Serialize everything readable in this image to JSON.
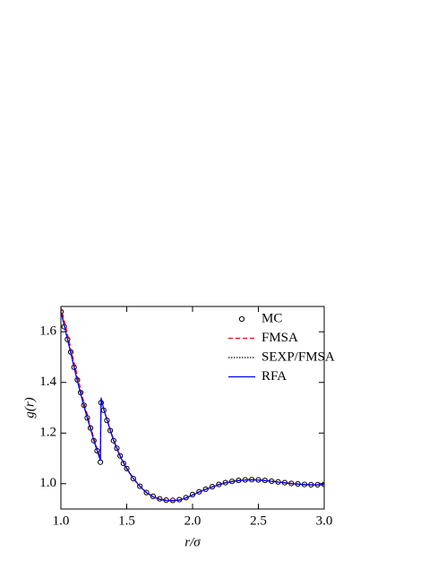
{
  "chart_data": {
    "type": "line",
    "xlabel": "r/σ",
    "ylabel": "g(r)",
    "x": [
      1.0,
      1.025,
      1.05,
      1.075,
      1.1,
      1.125,
      1.15,
      1.175,
      1.2,
      1.225,
      1.25,
      1.275,
      1.3,
      1.305,
      1.325,
      1.35,
      1.375,
      1.4,
      1.425,
      1.45,
      1.475,
      1.5,
      1.55,
      1.6,
      1.65,
      1.7,
      1.75,
      1.8,
      1.85,
      1.9,
      1.95,
      2.0,
      2.05,
      2.1,
      2.15,
      2.2,
      2.25,
      2.3,
      2.35,
      2.4,
      2.45,
      2.5,
      2.55,
      2.6,
      2.65,
      2.7,
      2.75,
      2.8,
      2.85,
      2.9,
      2.95,
      3.0
    ],
    "series": [
      {
        "name": "MC",
        "color": "#000000",
        "marker": "circle",
        "values": [
          1.68,
          1.62,
          1.57,
          1.52,
          1.46,
          1.41,
          1.36,
          1.31,
          1.26,
          1.22,
          1.17,
          1.13,
          1.085,
          1.32,
          1.29,
          1.25,
          1.21,
          1.17,
          1.14,
          1.11,
          1.08,
          1.06,
          1.02,
          0.99,
          0.965,
          0.95,
          0.94,
          0.935,
          0.934,
          0.937,
          0.945,
          0.957,
          0.968,
          0.978,
          0.988,
          0.997,
          1.004,
          1.009,
          1.013,
          1.015,
          1.016,
          1.015,
          1.013,
          1.01,
          1.007,
          1.004,
          1.001,
          0.999,
          0.997,
          0.996,
          0.996,
          0.997
        ]
      },
      {
        "name": "FMSA",
        "color": "#ff0000",
        "style": "dashed",
        "values": [
          1.7,
          1.645,
          1.59,
          1.535,
          1.48,
          1.425,
          1.375,
          1.32,
          1.275,
          1.225,
          1.18,
          1.14,
          1.1,
          1.33,
          1.295,
          1.255,
          1.215,
          1.175,
          1.142,
          1.112,
          1.085,
          1.062,
          1.022,
          0.991,
          0.966,
          0.95,
          0.94,
          0.935,
          0.934,
          0.936,
          0.944,
          0.956,
          0.968,
          0.978,
          0.988,
          0.997,
          1.004,
          1.009,
          1.013,
          1.015,
          1.016,
          1.015,
          1.013,
          1.01,
          1.007,
          1.004,
          1.001,
          0.999,
          0.997,
          0.996,
          0.996,
          0.997
        ]
      },
      {
        "name": "SEXP/FMSA",
        "color": "#000000",
        "style": "dotted",
        "values": [
          1.685,
          1.63,
          1.575,
          1.52,
          1.465,
          1.41,
          1.36,
          1.31,
          1.265,
          1.22,
          1.175,
          1.135,
          1.095,
          1.335,
          1.295,
          1.253,
          1.212,
          1.172,
          1.14,
          1.11,
          1.083,
          1.06,
          1.021,
          0.99,
          0.965,
          0.949,
          0.939,
          0.934,
          0.933,
          0.936,
          0.944,
          0.956,
          0.968,
          0.978,
          0.988,
          0.997,
          1.004,
          1.009,
          1.013,
          1.015,
          1.016,
          1.015,
          1.013,
          1.01,
          1.007,
          1.004,
          1.001,
          0.999,
          0.997,
          0.996,
          0.996,
          0.997
        ]
      },
      {
        "name": "RFA",
        "color": "#0000ff",
        "style": "solid",
        "values": [
          1.68,
          1.625,
          1.57,
          1.515,
          1.46,
          1.405,
          1.355,
          1.305,
          1.26,
          1.215,
          1.17,
          1.13,
          1.09,
          1.34,
          1.295,
          1.252,
          1.21,
          1.17,
          1.138,
          1.108,
          1.082,
          1.058,
          1.02,
          0.989,
          0.964,
          0.948,
          0.938,
          0.933,
          0.932,
          0.935,
          0.943,
          0.955,
          0.967,
          0.977,
          0.987,
          0.996,
          1.003,
          1.008,
          1.012,
          1.014,
          1.015,
          1.014,
          1.012,
          1.009,
          1.006,
          1.003,
          1.0,
          0.998,
          0.996,
          0.995,
          0.995,
          0.996
        ]
      }
    ],
    "xlim": [
      1.0,
      3.0
    ],
    "xticks": [
      {
        "value": 1.0,
        "label": "1.0"
      },
      {
        "value": 1.5,
        "label": "1.5"
      },
      {
        "value": 2.0,
        "label": "2.0"
      },
      {
        "value": 2.5,
        "label": "2.5"
      },
      {
        "value": 3.0,
        "label": "3.0"
      }
    ],
    "ylim": [
      0.9,
      1.7
    ],
    "yticks": [
      {
        "value": 1.0,
        "label": "1.0"
      },
      {
        "value": 1.2,
        "label": "1.2"
      },
      {
        "value": 1.4,
        "label": "1.4"
      },
      {
        "value": 1.6,
        "label": "1.6"
      }
    ],
    "legend": "upper right"
  }
}
